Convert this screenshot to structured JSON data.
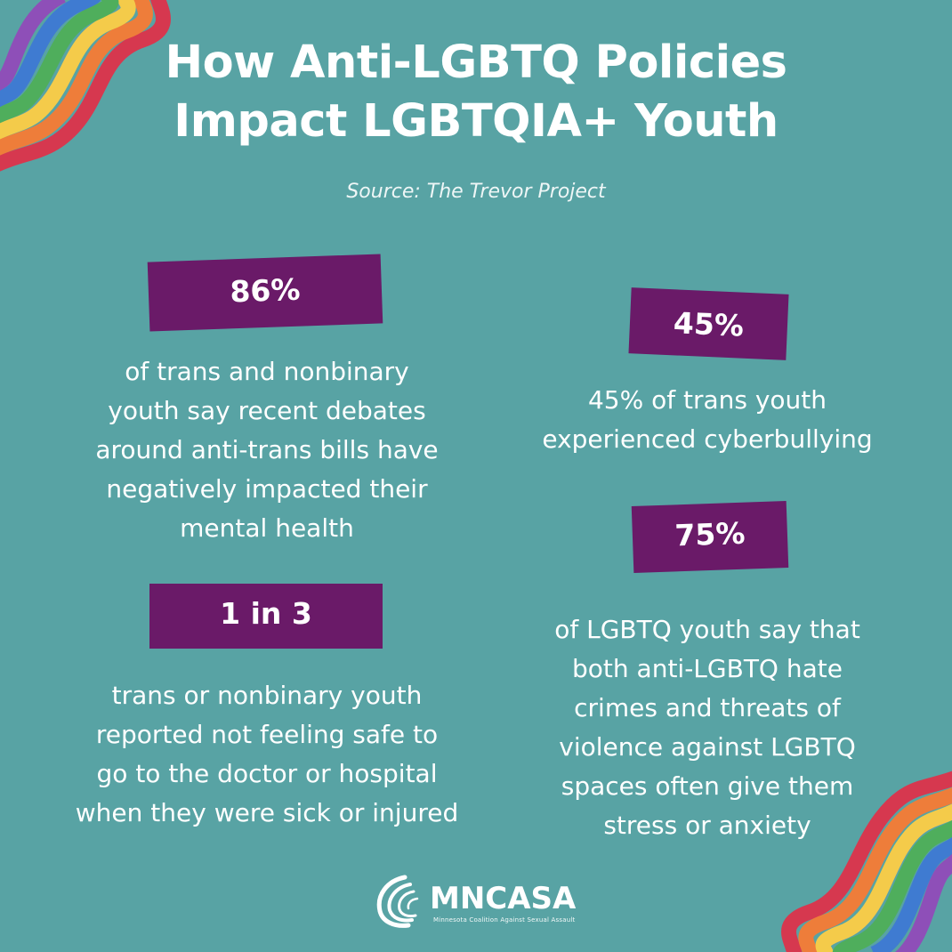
{
  "poster": {
    "title_line1": "How Anti-LGBTQ Policies",
    "title_line2": "Impact LGBTQIA+ Youth",
    "source": "Source: The Trevor Project"
  },
  "stats": {
    "s86": {
      "value": "86%",
      "lines": [
        "of trans and nonbinary",
        "youth say recent debates",
        "around anti-trans bills have",
        "negatively impacted their",
        "mental health"
      ]
    },
    "s45": {
      "value": "45%",
      "lines": [
        "45% of trans youth",
        "experienced cyberbullying"
      ]
    },
    "s1in3": {
      "value": "1 in 3",
      "lines": [
        "trans or nonbinary youth",
        "reported not feeling safe to",
        "go to the doctor or hospital",
        "when they were sick or injured"
      ]
    },
    "s75": {
      "value": "75%",
      "lines": [
        "of LGBTQ youth say that",
        "both anti-LGBTQ hate",
        "crimes and threats of",
        "violence against LGBTQ",
        "spaces often give them",
        "stress or anxiety"
      ]
    }
  },
  "logo": {
    "name": "MNCASA",
    "tagline": "Minnesota Coalition Against Sexual Assault"
  },
  "colors": {
    "background": "#58a3a4",
    "badge": "#6a1a68",
    "text": "#ffffff",
    "rainbow": [
      "#d6384f",
      "#ee7d3a",
      "#f4cb4a",
      "#4fae5c",
      "#3f7bd1",
      "#8e4fb8"
    ]
  },
  "icons": {
    "rainbow_top_left": "rainbow-wave-decoration",
    "rainbow_bottom_right": "rainbow-wave-decoration",
    "logo_mark": "mncasa-arc-logo"
  }
}
